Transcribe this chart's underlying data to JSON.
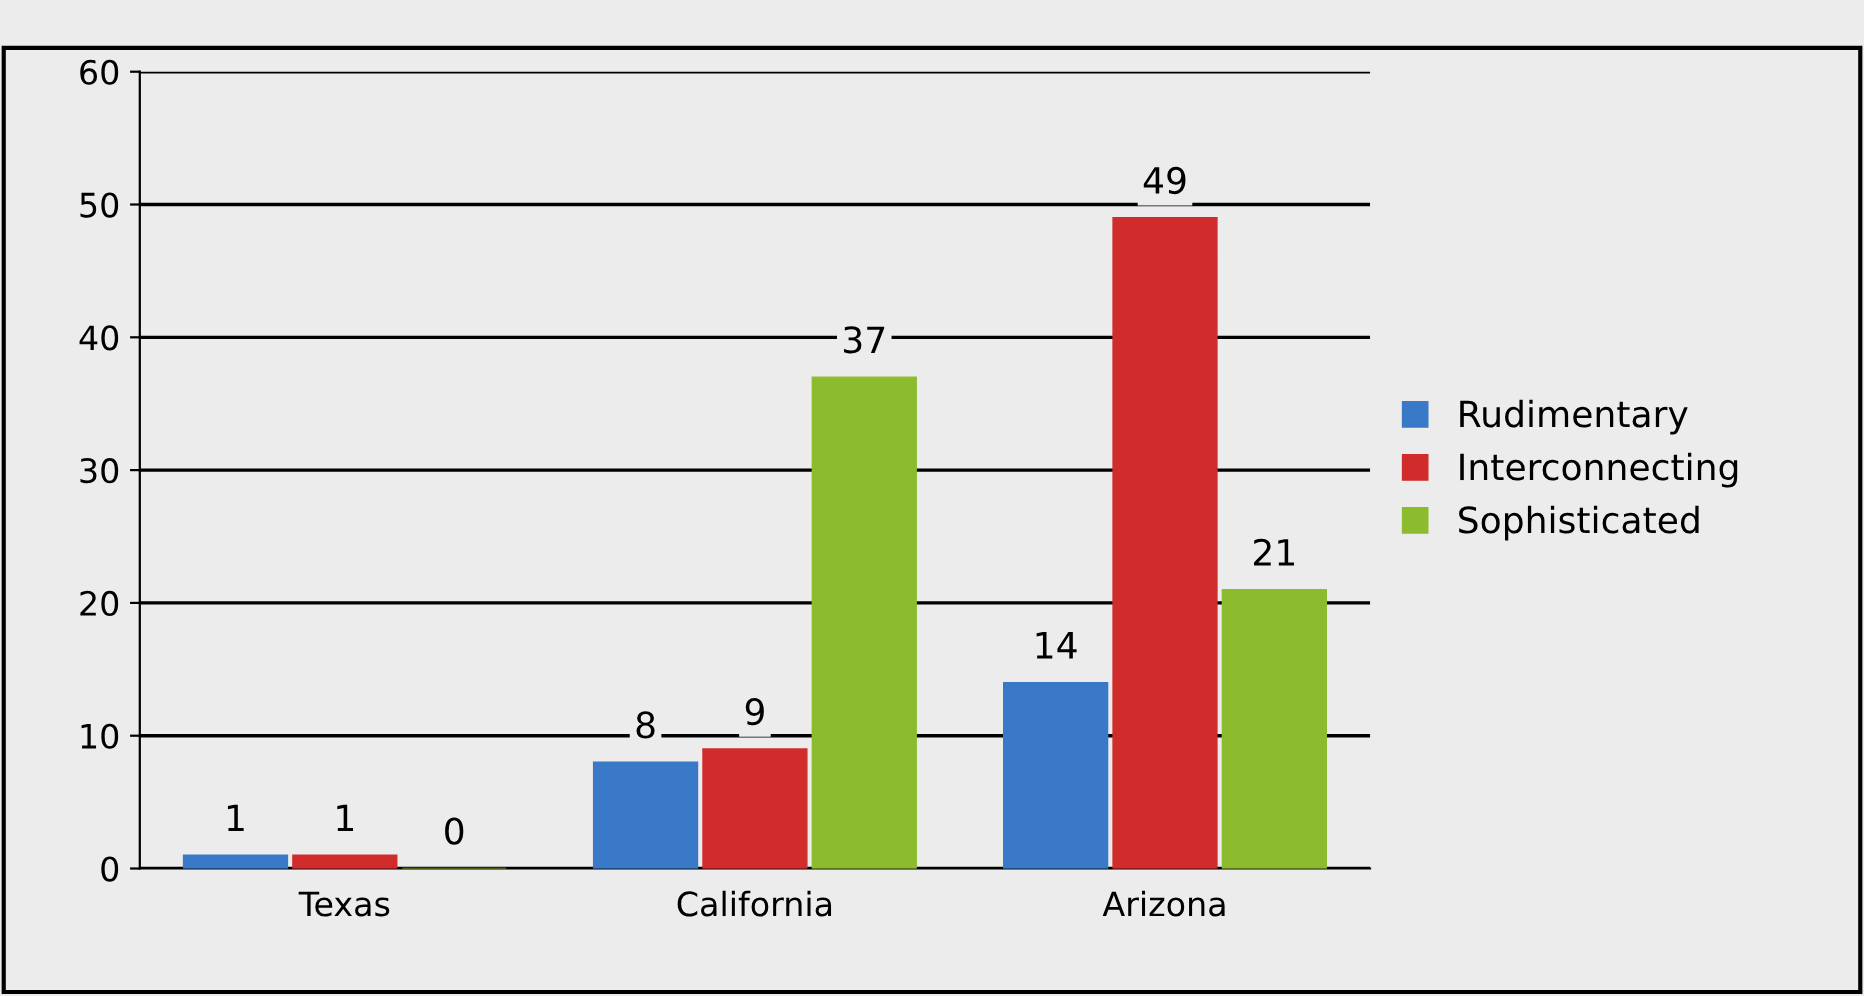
{
  "chart_data": {
    "type": "bar",
    "categories": [
      "Texas",
      "California",
      "Arizona"
    ],
    "series": [
      {
        "name": "Rudimentary",
        "color": "#3a78c8",
        "values": [
          1,
          8,
          14
        ]
      },
      {
        "name": "Interconnecting",
        "color": "#d02c2c",
        "values": [
          1,
          9,
          49
        ]
      },
      {
        "name": "Sophisticated",
        "color": "#8cbb2e",
        "values": [
          0,
          37,
          21
        ]
      }
    ],
    "ylim": [
      0,
      60
    ],
    "yticks": [
      0,
      10,
      20,
      30,
      40,
      50,
      60
    ],
    "grid": "y",
    "legend": "right",
    "data_labels": true
  }
}
